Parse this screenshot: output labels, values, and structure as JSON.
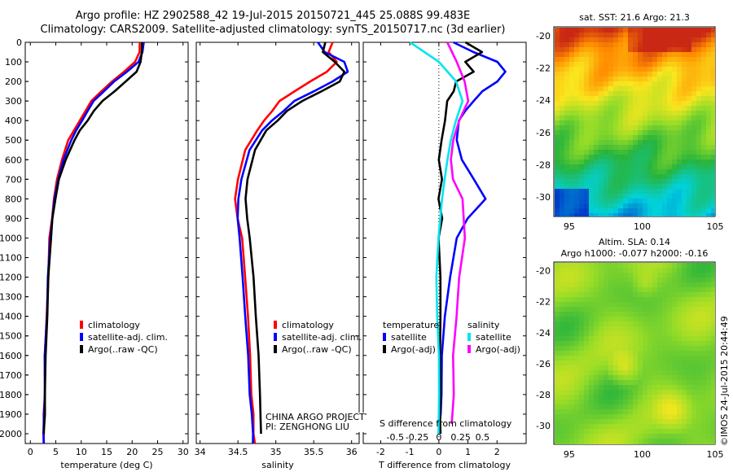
{
  "header": {
    "line1": "Argo profile: HZ 2902588_42 19-Jul-2015 20150721_445 25.088S 99.483E",
    "line2": "Climatology: CARS2009. Satellite-adjusted climatology: synTS_20150717.nc (3d earlier)"
  },
  "colors": {
    "climatology": "#ff0000",
    "satellite": "#0000ff",
    "argo": "#000000",
    "satellite_s": "#00e5ee",
    "argo_s": "#ff00ff"
  },
  "depth_ticks": [
    0,
    100,
    200,
    300,
    400,
    500,
    600,
    700,
    800,
    900,
    1000,
    1100,
    1200,
    1300,
    1400,
    1500,
    1600,
    1700,
    1800,
    1900,
    2000
  ],
  "chart_data": [
    {
      "type": "line",
      "panel": "temperature",
      "xlabel": "temperature (deg C)",
      "xticks": [
        "0",
        "5",
        "10",
        "15",
        "20",
        "25",
        "30"
      ],
      "xlim": [
        -1,
        31
      ],
      "ylim": [
        0,
        2050
      ],
      "legend": [
        "climatology",
        "satellite-adj. clim.",
        "Argo(..raw -QC)"
      ],
      "series": [
        {
          "name": "climatology",
          "color": "#ff0000",
          "x": [
            21.5,
            21.5,
            20.5,
            18.5,
            16,
            14,
            12,
            10.8,
            9.8,
            8.5,
            7.5,
            6.2,
            5.2,
            4.7,
            4.2,
            3.8,
            3.5,
            3.2,
            2.9,
            2.8,
            2.7,
            2.6,
            2.6
          ],
          "y": [
            0,
            50,
            100,
            150,
            200,
            250,
            300,
            350,
            400,
            450,
            500,
            600,
            700,
            800,
            900,
            1000,
            1200,
            1400,
            1600,
            1800,
            1900,
            2000,
            2050
          ]
        },
        {
          "name": "satellite-adj. clim.",
          "color": "#0000ff",
          "x": [
            22.2,
            22.1,
            21.2,
            19,
            16.5,
            14.4,
            12.5,
            11.2,
            10.2,
            9,
            8,
            6.6,
            5.4,
            4.8,
            4.3,
            3.9,
            3.5,
            3.2,
            2.9,
            2.8,
            2.7,
            2.6,
            2.6
          ],
          "y": [
            0,
            50,
            100,
            150,
            200,
            250,
            300,
            350,
            400,
            450,
            500,
            600,
            700,
            800,
            900,
            1000,
            1200,
            1400,
            1600,
            1800,
            1900,
            2000,
            2050
          ]
        },
        {
          "name": "Argo(..raw -QC)",
          "color": "#000000",
          "x": [
            21.9,
            21.9,
            21.7,
            20.8,
            18.8,
            16.5,
            14.2,
            12.5,
            11.2,
            9.8,
            8.6,
            7,
            5.6,
            4.9,
            4.4,
            4,
            3.6,
            3.3,
            3,
            2.9,
            2.8,
            2.7
          ],
          "y": [
            0,
            50,
            100,
            150,
            200,
            250,
            300,
            350,
            400,
            450,
            500,
            600,
            700,
            800,
            900,
            1000,
            1200,
            1400,
            1600,
            1800,
            1900,
            2000
          ]
        }
      ]
    },
    {
      "type": "line",
      "panel": "salinity",
      "xlabel": "salinity",
      "xticks": [
        "34",
        "34.5",
        "35",
        "35.5",
        "36"
      ],
      "xlim": [
        33.95,
        36.1
      ],
      "ylim": [
        0,
        2050
      ],
      "legend": [
        "climatology",
        "satellite-adj. clim.",
        "Argo(..raw -QC)"
      ],
      "annotation": [
        "CHINA ARGO PROJECT",
        "PI: ZENGHONG LIU"
      ],
      "series": [
        {
          "name": "climatology",
          "color": "#ff0000",
          "x": [
            35.75,
            35.7,
            35.8,
            35.68,
            35.45,
            35.25,
            35.05,
            34.95,
            34.85,
            34.75,
            34.6,
            34.5,
            34.46,
            34.5,
            34.55,
            34.6,
            34.63,
            34.66,
            34.68,
            34.7,
            34.71,
            34.72
          ],
          "y": [
            0,
            50,
            100,
            150,
            200,
            250,
            300,
            350,
            400,
            450,
            550,
            700,
            800,
            900,
            1000,
            1200,
            1400,
            1600,
            1800,
            1900,
            2000,
            2050
          ]
        },
        {
          "name": "satellite-adj. clim.",
          "color": "#0000ff",
          "x": [
            35.55,
            35.65,
            35.9,
            35.95,
            35.75,
            35.5,
            35.25,
            35.1,
            34.95,
            34.82,
            34.65,
            34.55,
            34.5,
            34.5,
            34.52,
            34.56,
            34.6,
            34.63,
            34.66,
            34.68,
            34.7,
            34.7
          ],
          "y": [
            0,
            50,
            100,
            150,
            200,
            250,
            300,
            350,
            400,
            450,
            550,
            700,
            800,
            900,
            1000,
            1200,
            1400,
            1600,
            1800,
            1900,
            2000,
            2050
          ]
        },
        {
          "name": "Argo(..raw -QC)",
          "color": "#000000",
          "x": [
            35.65,
            35.62,
            35.78,
            35.9,
            35.85,
            35.6,
            35.35,
            35.15,
            35.02,
            34.88,
            34.72,
            34.63,
            34.6,
            34.62,
            34.66,
            34.7,
            34.74,
            34.77,
            34.79,
            34.8,
            34.8
          ],
          "y": [
            0,
            50,
            100,
            150,
            200,
            250,
            300,
            350,
            400,
            450,
            550,
            700,
            800,
            900,
            1000,
            1200,
            1400,
            1600,
            1800,
            1900,
            2000
          ]
        }
      ]
    },
    {
      "type": "line",
      "panel": "difference",
      "xlabel": "T difference from climatology",
      "xticks": [
        "-2",
        "-1",
        "0",
        "1",
        "2"
      ],
      "top_label": "S difference from climatology",
      "top_ticks": [
        "-0.5",
        "-0.25",
        "0",
        "0.25",
        "0.5"
      ],
      "xlim": [
        -2.6,
        3.0
      ],
      "ylim": [
        0,
        2050
      ],
      "legend_t": {
        "title": "temperature",
        "items": [
          "satellite",
          "Argo(-adj)"
        ]
      },
      "legend_s": {
        "title": "salinity",
        "items": [
          "satellite",
          "Argo(-adj)"
        ]
      },
      "series": [
        {
          "name": "temperature satellite",
          "color": "#0000ff",
          "x": [
            0.5,
            1.2,
            2.0,
            2.3,
            2.0,
            1.5,
            1.2,
            0.9,
            0.7,
            0.6,
            0.8,
            1.2,
            1.6,
            1.0,
            0.6,
            0.4,
            0.2,
            0.1,
            0.1,
            0.05,
            0.0
          ],
          "y": [
            0,
            50,
            100,
            150,
            200,
            250,
            300,
            350,
            400,
            500,
            600,
            700,
            800,
            900,
            1000,
            1200,
            1400,
            1600,
            1800,
            1900,
            2000
          ]
        },
        {
          "name": "temperature Argo(-adj)",
          "color": "#000000",
          "x": [
            0.9,
            1.5,
            0.9,
            1.2,
            0.6,
            0.5,
            0.3,
            0.2,
            0.1,
            0.0,
            0.1,
            0.0,
            0.1,
            0.0,
            0.05,
            0.05,
            0.05,
            0.05,
            0.05,
            0.05
          ],
          "y": [
            0,
            50,
            100,
            150,
            200,
            250,
            300,
            400,
            500,
            600,
            700,
            800,
            900,
            1000,
            1200,
            1400,
            1600,
            1800,
            1900,
            2000
          ]
        },
        {
          "name": "salinity satellite",
          "color": "#00e5ee",
          "x": [
            -1.0,
            0.0,
            0.6,
            0.8,
            0.6,
            0.4,
            0.3,
            0.2,
            0.1,
            0.0,
            -0.1,
            -0.05,
            0.0,
            0.0,
            0.0
          ],
          "y": [
            0,
            100,
            200,
            300,
            400,
            500,
            600,
            700,
            800,
            1000,
            1200,
            1400,
            1600,
            1800,
            2000
          ]
        },
        {
          "name": "salinity Argo(-adj)",
          "color": "#ff00ff",
          "x": [
            0.3,
            0.6,
            0.9,
            1.0,
            0.7,
            0.5,
            0.4,
            0.5,
            0.8,
            0.9,
            0.7,
            0.6,
            0.5,
            0.5,
            0.45
          ],
          "y": [
            0,
            100,
            200,
            300,
            400,
            500,
            600,
            700,
            800,
            1000,
            1200,
            1400,
            1600,
            1800,
            1950
          ]
        }
      ]
    },
    {
      "type": "heatmap",
      "panel": "sst_map",
      "title": "sat. SST: 21.6 Argo: 21.3",
      "xticks": [
        "95",
        "100",
        "105"
      ],
      "yticks": [
        "-20",
        "-22",
        "-24",
        "-26",
        "-28",
        "-30"
      ]
    },
    {
      "type": "heatmap",
      "panel": "sla_map",
      "title_lines": [
        "Altim. SLA: 0.14",
        "Argo h1000: -0.077 h2000: -0.16"
      ],
      "xticks": [
        "95",
        "100",
        "105"
      ],
      "yticks": [
        "-20",
        "-22",
        "-24",
        "-26",
        "-28",
        "-30"
      ]
    }
  ],
  "footer": {
    "stamp": "©IMOS 24-Jul-2015 20:44:49"
  }
}
